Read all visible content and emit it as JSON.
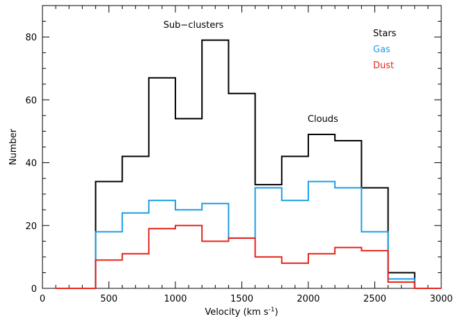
{
  "chart_data": {
    "type": "line",
    "title": "",
    "xlabel_main": "Velocity (km s",
    "xlabel_sup": "-1",
    "xlabel_close": ")",
    "ylabel": "Number",
    "xlim": [
      0,
      3000
    ],
    "ylim": [
      0,
      90
    ],
    "x_ticks": [
      0,
      500,
      1000,
      1500,
      2000,
      2500,
      3000
    ],
    "y_ticks": [
      0,
      20,
      40,
      60,
      80
    ],
    "x_tick_labels": [
      "0",
      "500",
      "1000",
      "1500",
      "2000",
      "2500",
      "3000"
    ],
    "y_tick_labels": [
      "0",
      "20",
      "40",
      "60",
      "80"
    ],
    "x_minor_step": 100,
    "y_minor_step": 5,
    "grid": false,
    "legend_position": "top-right",
    "bin_edges": [
      100,
      200,
      300,
      400,
      600,
      800,
      1000,
      1200,
      1400,
      1600,
      1800,
      2000,
      2200,
      2400,
      2600,
      2800,
      3000
    ],
    "series": [
      {
        "name": "Stars",
        "color": "#000000",
        "values": [
          0,
          0,
          0,
          34,
          42,
          67,
          54,
          79,
          62,
          33,
          42,
          49,
          47,
          32,
          5,
          0
        ]
      },
      {
        "name": "Gas",
        "color": "#1a9ee6",
        "values": [
          0,
          0,
          0,
          18,
          24,
          28,
          25,
          27,
          16,
          32,
          28,
          34,
          32,
          18,
          3,
          0
        ]
      },
      {
        "name": "Dust",
        "color": "#e8231b",
        "values": [
          0,
          0,
          0,
          9,
          11,
          19,
          20,
          15,
          16,
          10,
          8,
          11,
          13,
          12,
          2,
          0
        ]
      }
    ],
    "annotations": [
      {
        "text": "Sub−clusters",
        "x": 1200,
        "y": 83
      },
      {
        "text": "Clouds",
        "x": 2000,
        "y": 53
      }
    ]
  }
}
